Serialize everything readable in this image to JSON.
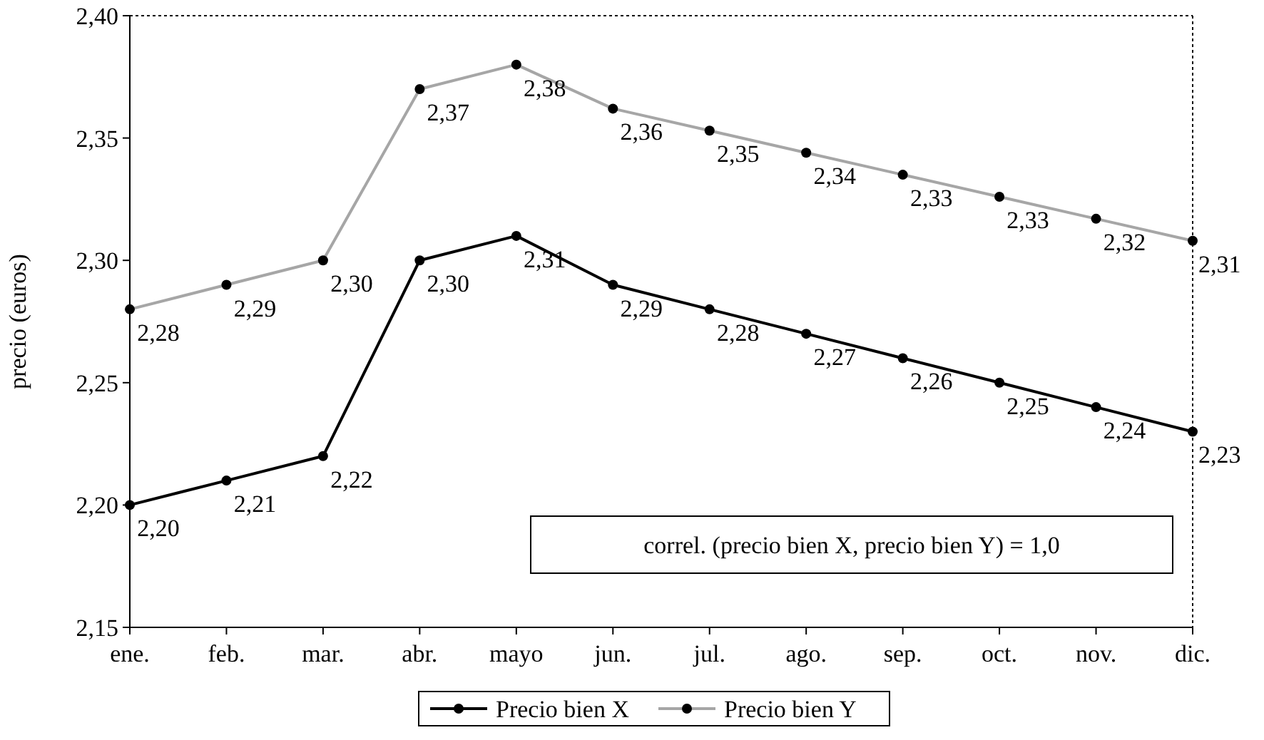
{
  "chart_data": {
    "type": "line",
    "ylabel": "precio (euros)",
    "categories": [
      "ene.",
      "feb.",
      "mar.",
      "abr.",
      "mayo",
      "jun.",
      "jul.",
      "ago.",
      "sep.",
      "oct.",
      "nov.",
      "dic."
    ],
    "series": [
      {
        "name": "Precio bien X",
        "color": "#000000",
        "values": [
          2.2,
          2.21,
          2.22,
          2.3,
          2.31,
          2.29,
          2.28,
          2.27,
          2.26,
          2.25,
          2.24,
          2.23
        ],
        "value_labels": [
          "2,20",
          "2,21",
          "2,22",
          "2,30",
          "2,31",
          "2,29",
          "2,28",
          "2,27",
          "2,26",
          "2,25",
          "2,24",
          "2,23"
        ]
      },
      {
        "name": "Precio bien Y",
        "color": "#a6a6a6",
        "values": [
          2.28,
          2.29,
          2.3,
          2.37,
          2.38,
          2.362,
          2.353,
          2.344,
          2.335,
          2.326,
          2.317,
          2.308
        ],
        "value_labels": [
          "2,28",
          "2,29",
          "2,30",
          "2,37",
          "2,38",
          "2,36",
          "2,35",
          "2,34",
          "2,33",
          "2,33",
          "2,32",
          "2,31"
        ]
      }
    ],
    "ylim": [
      2.15,
      2.4
    ],
    "yticks": [
      {
        "value": 2.15,
        "label": "2,15"
      },
      {
        "value": 2.2,
        "label": "2,20"
      },
      {
        "value": 2.25,
        "label": "2,25"
      },
      {
        "value": 2.3,
        "label": "2,30"
      },
      {
        "value": 2.35,
        "label": "2,35"
      },
      {
        "value": 2.4,
        "label": "2,40"
      }
    ],
    "annotations": [
      "correl. (precio bien X, precio bien Y) = 1,0"
    ],
    "legend": "bottom",
    "marker": "circle",
    "line_style": "solid",
    "grid": false
  }
}
